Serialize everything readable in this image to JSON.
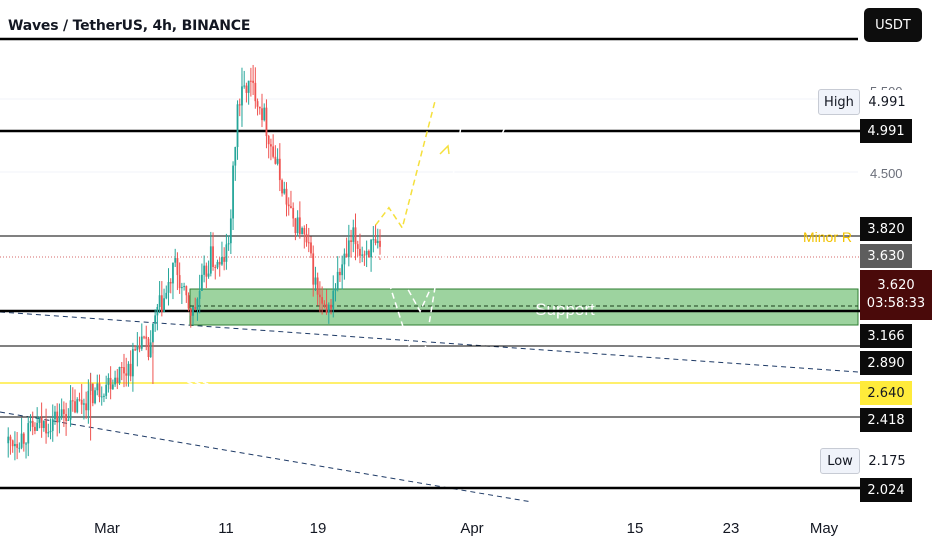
{
  "header": {
    "title": "Waves / TetherUS, 4h, BINANCE",
    "currency_button": "USDT"
  },
  "colors": {
    "bull": "#26a69a",
    "bear": "#ef5350",
    "support_fill": "#4caf50",
    "level_line": "#000000",
    "yellow_line": "#ffeb3b",
    "projection_white": "#ffffff",
    "projection_yellow": "#f5e03c",
    "trendline": "#1e3a66"
  },
  "axis": {
    "price_ticks": [
      {
        "label": "4.500",
        "value": 4.5
      },
      {
        "label": "5.500",
        "value": 5.5
      }
    ],
    "time_ticks": [
      "Mar",
      "11",
      "19",
      "Apr",
      "15",
      "23",
      "May"
    ]
  },
  "price_tags": {
    "high_label": "High",
    "high_value": "4.991",
    "high_line": "4.991",
    "minor_r": "3.820",
    "prev_close": "3.630",
    "current_price": "3.620",
    "countdown": "03:58:33",
    "support_top": "3.166",
    "level_2890": "2.890",
    "level_2640": "2.640",
    "level_2418": "2.418",
    "low_label": "Low",
    "low_value": "2.175",
    "low_line": "2.024"
  },
  "annotations": {
    "minor_r_label": "Minor R",
    "support_label": "Support",
    "liquidity_label": "$$$"
  },
  "chart_data": {
    "type": "candlestick",
    "symbol": "Waves / TetherUS",
    "interval": "4h",
    "exchange": "BINANCE",
    "currency": "USDT",
    "x_ticks": [
      "Mar",
      "11",
      "19",
      "Apr",
      "15",
      "23",
      "May"
    ],
    "price_range": [
      1.95,
      5.55
    ],
    "levels": [
      {
        "name": "High",
        "value": 4.991
      },
      {
        "name": "Minor R",
        "value": 3.82
      },
      {
        "name": "Previous close",
        "value": 3.63
      },
      {
        "name": "Current",
        "value": 3.62
      },
      {
        "name": "Support top",
        "value": 3.166
      },
      {
        "name": "2.890",
        "value": 2.89
      },
      {
        "name": "$$$",
        "value": 2.64
      },
      {
        "name": "2.418",
        "value": 2.418
      },
      {
        "name": "Low",
        "value": 2.175
      },
      {
        "name": "2.024",
        "value": 2.024
      }
    ],
    "support_zone": {
      "label": "Support",
      "low": 3.08,
      "high": 3.38
    },
    "candle_path": [
      {
        "t": 0,
        "p": 2.2
      },
      {
        "t": 8,
        "p": 2.26
      },
      {
        "t": 14,
        "p": 2.32
      },
      {
        "t": 20,
        "p": 2.36
      },
      {
        "t": 26,
        "p": 2.42
      },
      {
        "t": 32,
        "p": 2.48
      },
      {
        "t": 38,
        "p": 2.56
      },
      {
        "t": 44,
        "p": 2.63
      },
      {
        "t": 50,
        "p": 2.72
      },
      {
        "t": 56,
        "p": 2.78
      },
      {
        "t": 60,
        "p": 2.98
      },
      {
        "t": 64,
        "p": 2.86
      },
      {
        "t": 68,
        "p": 3.18
      },
      {
        "t": 72,
        "p": 3.3
      },
      {
        "t": 76,
        "p": 3.52
      },
      {
        "t": 80,
        "p": 3.28
      },
      {
        "t": 84,
        "p": 3.16
      },
      {
        "t": 88,
        "p": 3.38
      },
      {
        "t": 92,
        "p": 3.58
      },
      {
        "t": 96,
        "p": 3.5
      },
      {
        "t": 100,
        "p": 3.66
      },
      {
        "t": 104,
        "p": 4.7
      },
      {
        "t": 108,
        "p": 4.86
      },
      {
        "t": 112,
        "p": 4.82
      },
      {
        "t": 116,
        "p": 4.62
      },
      {
        "t": 120,
        "p": 4.35
      },
      {
        "t": 124,
        "p": 4.12
      },
      {
        "t": 128,
        "p": 3.88
      },
      {
        "t": 132,
        "p": 3.8
      },
      {
        "t": 136,
        "p": 3.62
      },
      {
        "t": 140,
        "p": 3.3
      },
      {
        "t": 144,
        "p": 3.12
      },
      {
        "t": 148,
        "p": 3.38
      },
      {
        "t": 152,
        "p": 3.55
      },
      {
        "t": 156,
        "p": 3.72
      },
      {
        "t": 160,
        "p": 3.62
      },
      {
        "t": 164,
        "p": 3.66
      },
      {
        "t": 168,
        "p": 3.6
      }
    ],
    "projections": [
      {
        "style": "white-dashed",
        "points": [
          {
            "t": 168,
            "p": 3.6
          },
          {
            "t": 186,
            "p": 2.67
          },
          {
            "t": 206,
            "p": 4.72
          }
        ]
      },
      {
        "style": "white-dashed",
        "points": [
          {
            "t": 172,
            "p": 3.6
          },
          {
            "t": 186,
            "p": 3.18
          },
          {
            "t": 229,
            "p": 4.72
          }
        ]
      },
      {
        "style": "yellow-dashed",
        "points": [
          {
            "t": 166,
            "p": 3.82
          },
          {
            "t": 172,
            "p": 3.95
          },
          {
            "t": 178,
            "p": 3.8
          },
          {
            "t": 193,
            "p": 4.76
          }
        ]
      }
    ]
  }
}
